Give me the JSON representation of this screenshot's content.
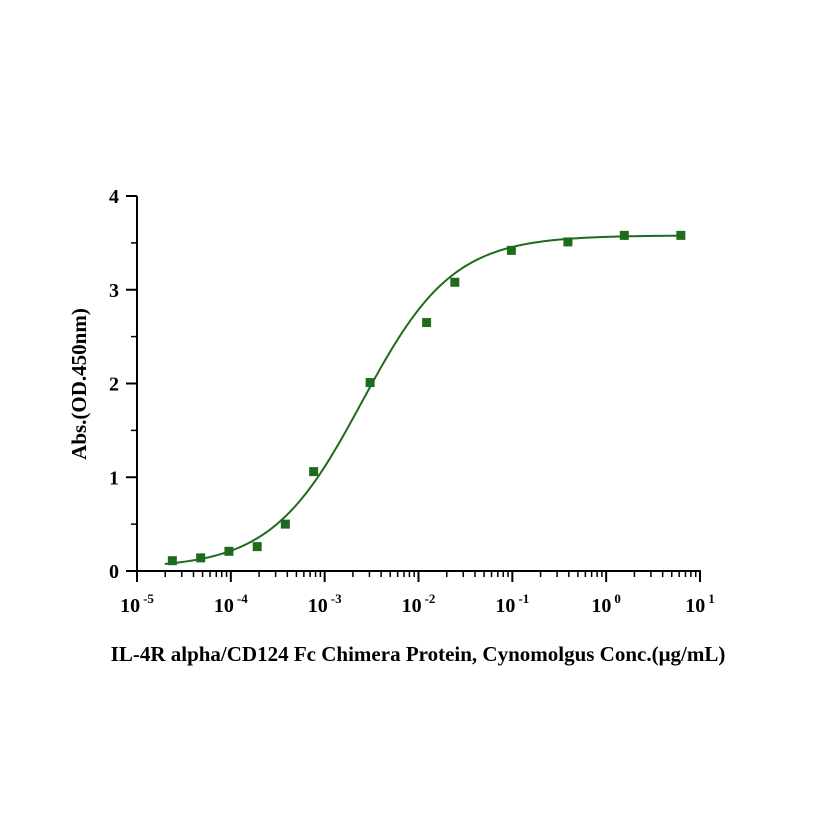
{
  "chart_data": {
    "type": "scatter",
    "x_scale": "log10",
    "xlabel": "IL-4R alpha/CD124 Fc Chimera Protein, Cynomolgus Conc.(μg/mL)",
    "ylabel": "Abs.(OD.450nm)",
    "xlim": [
      1e-05,
      10
    ],
    "ylim": [
      0,
      4
    ],
    "x_ticks": [
      {
        "base": "10",
        "exp": "-5"
      },
      {
        "base": "10",
        "exp": "-4"
      },
      {
        "base": "10",
        "exp": "-3"
      },
      {
        "base": "10",
        "exp": "-2"
      },
      {
        "base": "10",
        "exp": "-1"
      },
      {
        "base": "10",
        "exp": "0"
      },
      {
        "base": "10",
        "exp": "1"
      }
    ],
    "y_ticks": [
      "0",
      "1",
      "2",
      "3",
      "4"
    ],
    "grid": false,
    "legend": "none",
    "marker": "square",
    "color": "#1e6b1e",
    "series": [
      {
        "x": [
          2.38e-05,
          4.77e-05,
          9.54e-05,
          0.000191,
          0.000381,
          0.000763,
          0.00305,
          0.0122,
          0.0244,
          0.0977,
          0.391,
          1.56,
          6.25
        ],
        "y": [
          0.11,
          0.14,
          0.21,
          0.26,
          0.5,
          1.06,
          2.01,
          2.65,
          3.08,
          3.42,
          3.51,
          3.58,
          3.58
        ]
      }
    ],
    "fit": {
      "type": "4PL",
      "bottom": 0.03,
      "top": 3.58,
      "ec50": 0.0025,
      "hill": 0.9
    }
  }
}
